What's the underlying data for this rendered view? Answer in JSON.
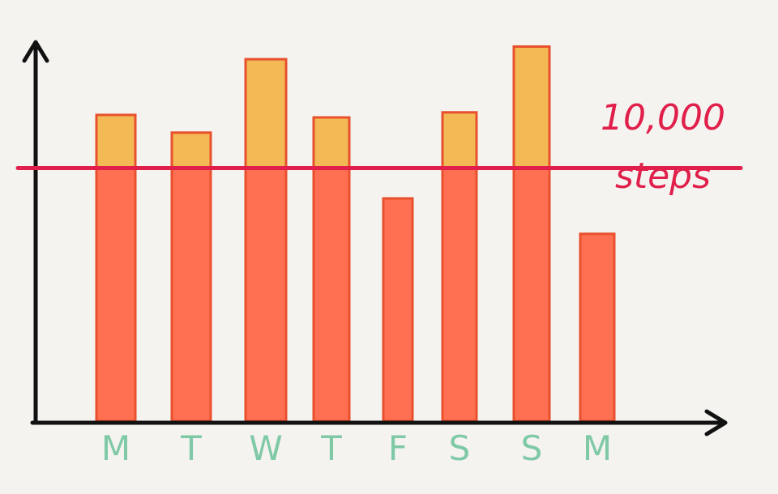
{
  "chart_data": {
    "type": "bar",
    "title": "",
    "xlabel": "",
    "ylabel": "",
    "categories": [
      "M",
      "T",
      "W",
      "T",
      "F",
      "S",
      "S",
      "M"
    ],
    "values": [
      12100,
      11400,
      14300,
      12000,
      8800,
      12200,
      14800,
      7400
    ],
    "ylim": [
      0,
      16000
    ],
    "goal": {
      "value": 10000,
      "label_line1": "10,000",
      "label_line2": "steps"
    },
    "colors": {
      "bar_below_goal": "#ff6f52",
      "bar_above_goal": "#f2b955",
      "bar_outline": "#e8502e",
      "goal_line": "#e01f4a",
      "tick_label": "#7fc9a6",
      "axis": "#111111"
    },
    "grid": false,
    "legend": "none"
  }
}
